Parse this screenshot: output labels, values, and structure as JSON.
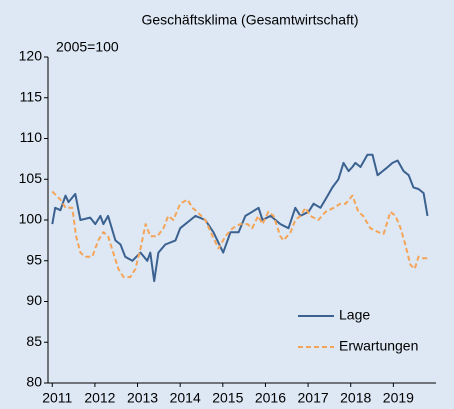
{
  "chart_data": {
    "type": "line",
    "title": "Geschäftsklima (Gesamtwirtschaft)",
    "subtitle": "2005=100",
    "xlim": [
      2010.9,
      2020.0
    ],
    "xticks": [
      2011,
      2012,
      2013,
      2014,
      2015,
      2016,
      2017,
      2018,
      2019
    ],
    "ylim": [
      80,
      120
    ],
    "yticks": [
      80,
      85,
      90,
      95,
      100,
      105,
      110,
      115,
      120
    ],
    "grid": false,
    "legend": "lower right",
    "series": [
      {
        "name": "Lage",
        "color": "#3b6190",
        "dash": false,
        "x": [
          2011.0,
          2011.07,
          2011.19,
          2011.31,
          2011.38,
          2011.54,
          2011.66,
          2011.89,
          2012.01,
          2012.13,
          2012.2,
          2012.31,
          2012.48,
          2012.6,
          2012.71,
          2012.88,
          2013.07,
          2013.23,
          2013.3,
          2013.39,
          2013.49,
          2013.65,
          2013.89,
          2014.0,
          2014.24,
          2014.36,
          2014.59,
          2014.78,
          2015.01,
          2015.18,
          2015.37,
          2015.53,
          2015.69,
          2015.84,
          2015.93,
          2016.12,
          2016.35,
          2016.54,
          2016.7,
          2016.82,
          2017.01,
          2017.13,
          2017.29,
          2017.46,
          2017.57,
          2017.71,
          2017.83,
          2017.95,
          2018.04,
          2018.11,
          2018.23,
          2018.39,
          2018.51,
          2018.63,
          2018.82,
          2018.98,
          2019.1,
          2019.24,
          2019.36,
          2019.47,
          2019.59,
          2019.71,
          2019.8
        ],
        "values": [
          99.5,
          101.5,
          101.2,
          103,
          102.2,
          103.2,
          100,
          100.3,
          99.5,
          100.5,
          99.5,
          100.5,
          97.5,
          97,
          95.5,
          95,
          96,
          95,
          96,
          92.5,
          96,
          97,
          97.5,
          99,
          100,
          100.5,
          100,
          98.5,
          96,
          98.5,
          98.5,
          100.5,
          101,
          101.5,
          100,
          100.5,
          99.5,
          99,
          101.5,
          100.5,
          101,
          102,
          101.5,
          103,
          104,
          105,
          107,
          106,
          106.5,
          107,
          106.5,
          108,
          108,
          105.5,
          106.3,
          107,
          107.3,
          106,
          105.5,
          104,
          103.8,
          103.3,
          100.5
        ]
      },
      {
        "name": "Erwartungen",
        "color": "#f5a458",
        "dash": true,
        "x": [
          2011.0,
          2011.19,
          2011.31,
          2011.47,
          2011.56,
          2011.66,
          2011.77,
          2011.94,
          2012.08,
          2012.2,
          2012.31,
          2012.43,
          2012.55,
          2012.67,
          2012.83,
          2012.95,
          2013.07,
          2013.19,
          2013.3,
          2013.46,
          2013.61,
          2013.72,
          2013.84,
          2014.0,
          2014.17,
          2014.29,
          2014.4,
          2014.59,
          2014.76,
          2014.9,
          2015.06,
          2015.23,
          2015.41,
          2015.58,
          2015.69,
          2015.83,
          2015.93,
          2016.07,
          2016.19,
          2016.35,
          2016.42,
          2016.59,
          2016.7,
          2016.82,
          2016.94,
          2017.05,
          2017.24,
          2017.41,
          2017.6,
          2017.76,
          2017.88,
          2018.04,
          2018.18,
          2018.29,
          2018.46,
          2018.65,
          2018.77,
          2018.93,
          2019.05,
          2019.17,
          2019.28,
          2019.4,
          2019.5,
          2019.59,
          2019.71,
          2019.83
        ],
        "values": [
          103.5,
          102.5,
          101.5,
          101.5,
          98,
          96,
          95.5,
          95.5,
          97.5,
          98.5,
          98,
          96,
          94,
          93,
          93,
          94,
          96.5,
          99.5,
          98,
          98,
          99,
          100.5,
          100,
          102,
          102.5,
          101.5,
          101,
          100,
          98,
          96.5,
          98,
          99,
          99.5,
          99.5,
          99,
          100.5,
          99.5,
          101,
          100.5,
          98,
          97.5,
          98.5,
          100,
          100.5,
          101.5,
          100.5,
          100,
          101,
          101.5,
          102,
          102,
          103,
          101,
          100.5,
          99,
          98.5,
          98.3,
          101,
          100.5,
          99,
          97,
          94.5,
          94,
          95.5,
          95.3,
          95.3
        ]
      }
    ]
  }
}
